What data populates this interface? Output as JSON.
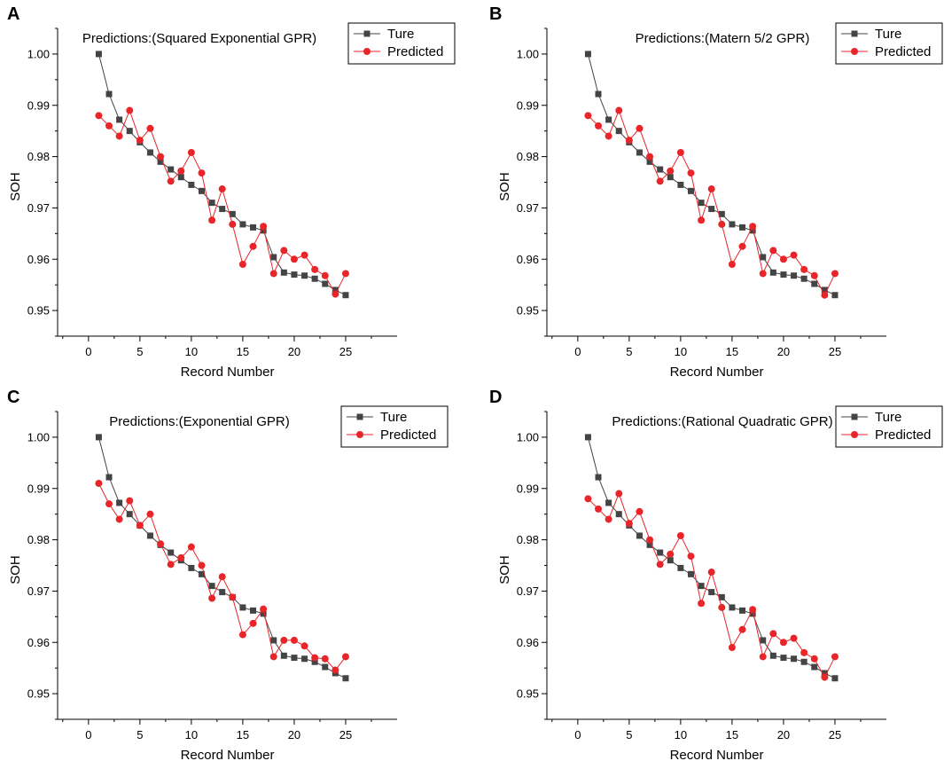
{
  "chart_data": [
    {
      "panel": "A",
      "type": "line",
      "title": "Predictions:(Squared Exponential GPR)",
      "xlabel": "Record Number",
      "ylabel": "SOH",
      "xlim": [
        -3,
        30
      ],
      "ylim": [
        0.945,
        1.005
      ],
      "xticks": [
        0,
        5,
        10,
        15,
        20,
        25
      ],
      "yticks": [
        0.95,
        0.96,
        0.97,
        0.98,
        0.99,
        1.0
      ],
      "ytick_labels": [
        "0.95",
        "0.96",
        "0.97",
        "0.98",
        "0.99",
        "1.00"
      ],
      "legend": "top-right",
      "x": [
        1,
        2,
        3,
        4,
        5,
        6,
        7,
        8,
        9,
        10,
        11,
        12,
        13,
        14,
        15,
        16,
        17,
        18,
        19,
        20,
        21,
        22,
        23,
        24,
        25
      ],
      "series": [
        {
          "name": "Ture",
          "color": "#444444",
          "marker": "square",
          "values": [
            1.0,
            0.9922,
            0.9872,
            0.985,
            0.9828,
            0.9808,
            0.979,
            0.9775,
            0.976,
            0.9745,
            0.9733,
            0.971,
            0.9698,
            0.9688,
            0.9668,
            0.9662,
            0.9656,
            0.9604,
            0.9574,
            0.957,
            0.9568,
            0.9562,
            0.9552,
            0.954,
            0.953
          ]
        },
        {
          "name": "Predicted",
          "color": "#e8262a",
          "marker": "circle",
          "values": [
            0.988,
            0.986,
            0.984,
            0.989,
            0.9832,
            0.9855,
            0.98,
            0.9752,
            0.9772,
            0.9808,
            0.9768,
            0.9676,
            0.9737,
            0.9668,
            0.959,
            0.9625,
            0.9664,
            0.9572,
            0.9617,
            0.96,
            0.9608,
            0.958,
            0.9568,
            0.9532,
            0.9572
          ]
        }
      ]
    },
    {
      "panel": "B",
      "type": "line",
      "title": "Predictions:(Matern 5/2 GPR)",
      "xlabel": "Record Number",
      "ylabel": "SOH",
      "xlim": [
        -3,
        30
      ],
      "ylim": [
        0.945,
        1.005
      ],
      "xticks": [
        0,
        5,
        10,
        15,
        20,
        25
      ],
      "yticks": [
        0.95,
        0.96,
        0.97,
        0.98,
        0.99,
        1.0
      ],
      "ytick_labels": [
        "0.95",
        "0.96",
        "0.97",
        "0.98",
        "0.99",
        "1.00"
      ],
      "legend": "top-right",
      "x": [
        1,
        2,
        3,
        4,
        5,
        6,
        7,
        8,
        9,
        10,
        11,
        12,
        13,
        14,
        15,
        16,
        17,
        18,
        19,
        20,
        21,
        22,
        23,
        24,
        25
      ],
      "series": [
        {
          "name": "Ture",
          "color": "#444444",
          "marker": "square",
          "values": [
            1.0,
            0.9922,
            0.9872,
            0.985,
            0.9828,
            0.9808,
            0.979,
            0.9775,
            0.976,
            0.9745,
            0.9733,
            0.971,
            0.9698,
            0.9688,
            0.9668,
            0.9662,
            0.9656,
            0.9604,
            0.9574,
            0.957,
            0.9568,
            0.9562,
            0.9552,
            0.954,
            0.953
          ]
        },
        {
          "name": "Predicted",
          "color": "#e8262a",
          "marker": "circle",
          "values": [
            0.988,
            0.986,
            0.984,
            0.989,
            0.9832,
            0.9855,
            0.98,
            0.9752,
            0.9772,
            0.9808,
            0.9768,
            0.9676,
            0.9737,
            0.9668,
            0.959,
            0.9625,
            0.9664,
            0.9572,
            0.9617,
            0.96,
            0.9608,
            0.958,
            0.9568,
            0.953,
            0.9572
          ]
        }
      ]
    },
    {
      "panel": "C",
      "type": "line",
      "title": "Predictions:(Exponential GPR)",
      "xlabel": "Record Number",
      "ylabel": "SOH",
      "xlim": [
        -3,
        30
      ],
      "ylim": [
        0.945,
        1.005
      ],
      "xticks": [
        0,
        5,
        10,
        15,
        20,
        25
      ],
      "yticks": [
        0.95,
        0.96,
        0.97,
        0.98,
        0.99,
        1.0
      ],
      "ytick_labels": [
        "0.95",
        "0.96",
        "0.97",
        "0.98",
        "0.99",
        "1.00"
      ],
      "legend": "top-right",
      "x": [
        1,
        2,
        3,
        4,
        5,
        6,
        7,
        8,
        9,
        10,
        11,
        12,
        13,
        14,
        15,
        16,
        17,
        18,
        19,
        20,
        21,
        22,
        23,
        24,
        25
      ],
      "series": [
        {
          "name": "Ture",
          "color": "#444444",
          "marker": "square",
          "values": [
            1.0,
            0.9922,
            0.9872,
            0.985,
            0.9828,
            0.9808,
            0.979,
            0.9775,
            0.976,
            0.9745,
            0.9733,
            0.971,
            0.9698,
            0.9688,
            0.9668,
            0.9662,
            0.9656,
            0.9604,
            0.9574,
            0.957,
            0.9568,
            0.9562,
            0.9552,
            0.954,
            0.953
          ]
        },
        {
          "name": "Predicted",
          "color": "#e8262a",
          "marker": "circle",
          "values": [
            0.991,
            0.987,
            0.984,
            0.9876,
            0.9828,
            0.985,
            0.9792,
            0.9752,
            0.9765,
            0.9786,
            0.975,
            0.9686,
            0.9728,
            0.9688,
            0.9615,
            0.9637,
            0.9665,
            0.9572,
            0.9604,
            0.9604,
            0.9593,
            0.957,
            0.9568,
            0.9546,
            0.9572
          ]
        }
      ]
    },
    {
      "panel": "D",
      "type": "line",
      "title": "Predictions:(Rational Quadratic GPR)",
      "xlabel": "Record Number",
      "ylabel": "SOH",
      "xlim": [
        -3,
        30
      ],
      "ylim": [
        0.945,
        1.005
      ],
      "xticks": [
        0,
        5,
        10,
        15,
        20,
        25
      ],
      "yticks": [
        0.95,
        0.96,
        0.97,
        0.98,
        0.99,
        1.0
      ],
      "ytick_labels": [
        "0.95",
        "0.96",
        "0.97",
        "0.98",
        "0.99",
        "1.00"
      ],
      "legend": "top-right",
      "x": [
        1,
        2,
        3,
        4,
        5,
        6,
        7,
        8,
        9,
        10,
        11,
        12,
        13,
        14,
        15,
        16,
        17,
        18,
        19,
        20,
        21,
        22,
        23,
        24,
        25
      ],
      "series": [
        {
          "name": "Ture",
          "color": "#444444",
          "marker": "square",
          "values": [
            1.0,
            0.9922,
            0.9872,
            0.985,
            0.9828,
            0.9808,
            0.979,
            0.9775,
            0.976,
            0.9745,
            0.9733,
            0.971,
            0.9698,
            0.9688,
            0.9668,
            0.9662,
            0.9656,
            0.9604,
            0.9574,
            0.957,
            0.9568,
            0.9562,
            0.9552,
            0.954,
            0.953
          ]
        },
        {
          "name": "Predicted",
          "color": "#e8262a",
          "marker": "circle",
          "values": [
            0.988,
            0.986,
            0.984,
            0.989,
            0.9832,
            0.9855,
            0.98,
            0.9752,
            0.9772,
            0.9808,
            0.9768,
            0.9676,
            0.9737,
            0.9668,
            0.959,
            0.9625,
            0.9664,
            0.9572,
            0.9617,
            0.96,
            0.9608,
            0.958,
            0.9568,
            0.9532,
            0.9572
          ]
        }
      ]
    }
  ]
}
